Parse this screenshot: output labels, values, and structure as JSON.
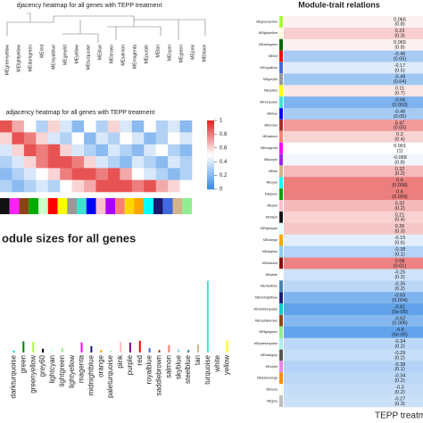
{
  "dendrogram": {
    "title": "djacency heatmap for all genes with TEPP treatment",
    "labels": [
      "MEgreenyellow",
      "MElightyellow",
      "MEdarkgreen",
      "MEred",
      "MEroyalblue",
      "MEgrey60",
      "MEyellow",
      "MEturquoise",
      "MEblue",
      "MEbrown",
      "MEsalmon",
      "MEmagenta",
      "MEpurple",
      "MEtan",
      "MEcyan",
      "MEgreen",
      "MEpink",
      "MEblack"
    ]
  },
  "heatmap": {
    "title": "adjacency heatmap for all genes with TEPP treatment",
    "colorbar_ticks": [
      1,
      0.8,
      0.6,
      0.4,
      0.2,
      0
    ],
    "matrix": [
      [
        0.9,
        0.7,
        0.5,
        0.3,
        0.6,
        0.4,
        0.2,
        0.5,
        0.3,
        0.6,
        0.4,
        0.2,
        0.5,
        0.3,
        0.4,
        0.2
      ],
      [
        0.6,
        0.9,
        0.8,
        0.6,
        0.4,
        0.3,
        0.5,
        0.2,
        0.4,
        0.3,
        0.5,
        0.4,
        0.2,
        0.3,
        0.5,
        0.4
      ],
      [
        0.4,
        0.6,
        0.9,
        0.8,
        0.9,
        0.6,
        0.4,
        0.3,
        0.2,
        0.4,
        0.3,
        0.2,
        0.4,
        0.5,
        0.3,
        0.2
      ],
      [
        0.3,
        0.4,
        0.6,
        0.8,
        0.9,
        0.9,
        0.8,
        0.6,
        0.4,
        0.3,
        0.2,
        0.4,
        0.3,
        0.2,
        0.4,
        0.3
      ],
      [
        0.2,
        0.3,
        0.4,
        0.5,
        0.6,
        0.8,
        0.9,
        0.9,
        0.8,
        0.9,
        0.7,
        0.5,
        0.4,
        0.3,
        0.2,
        0.3
      ],
      [
        0.3,
        0.2,
        0.3,
        0.4,
        0.3,
        0.5,
        0.6,
        0.7,
        0.9,
        0.9,
        0.9,
        0.8,
        0.9,
        0.7,
        0.6,
        0.5
      ]
    ],
    "module_colors": [
      "#111",
      "#f2f",
      "#8b4513",
      "#0a0",
      "#cfc",
      "#f00",
      "#ff0",
      "#999",
      "#40e0d0",
      "#00f",
      "#ffc0cb",
      "#a0f",
      "#fa8072",
      "#ffd700",
      "#ffa500",
      "#0ff",
      "#191970",
      "#4169e1",
      "#d2b48c",
      "#90ee90"
    ]
  },
  "module_sizes": {
    "title": "odule sizes for all genes",
    "ylim": [
      0,
      1500
    ],
    "categories": [
      "darkturquoise",
      "green",
      "greenyellow",
      "grey60",
      "lightcyan",
      "lightgreen",
      "lightyellow",
      "magenta",
      "midnightblue",
      "orange",
      "paleturquoise",
      "pink",
      "purple",
      "red",
      "royalblue",
      "saddlebrown",
      "salmon",
      "skyblue",
      "steelblue",
      "tan",
      "turquoise",
      "white",
      "yellow"
    ],
    "values": [
      30,
      180,
      170,
      60,
      80,
      70,
      60,
      160,
      100,
      40,
      40,
      170,
      160,
      190,
      70,
      40,
      120,
      50,
      40,
      130,
      1150,
      30,
      190
    ]
  },
  "module_trait": {
    "title": "Module-trait relations",
    "xlabel": "TEPP treatment",
    "rows": [
      {
        "label": "MEgreenyellow",
        "r": 0.065,
        "p": "(0.8)",
        "color": "#adff2f"
      },
      {
        "label": "MElightyellow",
        "r": 0.23,
        "p": "(0.3)",
        "color": "#ffffe0"
      },
      {
        "label": "MEdarkgreen",
        "r": 0.065,
        "p": "(0.8)",
        "color": "#006400"
      },
      {
        "label": "MEred",
        "r": -0.45,
        "p": "(0.05)",
        "color": "#ff0000"
      },
      {
        "label": "MEroyalblue",
        "r": -0.17,
        "p": "(0.5)",
        "color": "#4169e1"
      },
      {
        "label": "MEgrey60",
        "r": -0.49,
        "p": "(0.04)",
        "color": "#999999"
      },
      {
        "label": "MEyellow",
        "r": 0.11,
        "p": "(0.7)",
        "color": "#ffff00"
      },
      {
        "label": "MEturquoise",
        "r": -0.66,
        "p": "(0.003)",
        "color": "#40e0d0"
      },
      {
        "label": "MEblue",
        "r": -0.46,
        "p": "(0.05)",
        "color": "#0000ff"
      },
      {
        "label": "MEbrown",
        "r": 0.47,
        "p": "(0.05)",
        "color": "#a52a2a"
      },
      {
        "label": "MEsalmon",
        "r": 0.2,
        "p": "(0.4)",
        "color": "#fa8072"
      },
      {
        "label": "MEmagenta",
        "r": 0.001,
        "p": "(1)",
        "color": "#ff00ff"
      },
      {
        "label": "MEpurple",
        "r": -0.068,
        "p": "(0.8)",
        "color": "#a020f0"
      },
      {
        "label": "MEtan",
        "r": 0.32,
        "p": "(0.2)",
        "color": "#d2b48c"
      },
      {
        "label": "MEcyan",
        "r": 0.6,
        "p": "(0.008)",
        "color": "#00ffff"
      },
      {
        "label": "MEgreen",
        "r": 0.6,
        "p": "(0.009)",
        "color": "#00a000"
      },
      {
        "label": "MEpink",
        "r": 0.32,
        "p": "(0.2)",
        "color": "#ffc0cb"
      },
      {
        "label": "MEblack",
        "r": 0.21,
        "p": "(0.4)",
        "color": "#111111"
      },
      {
        "label": "MElightcyan",
        "r": 0.26,
        "p": "(0.3)",
        "color": "#e0ffff"
      },
      {
        "label": "MEorange",
        "r": -0.15,
        "p": "(0.6)",
        "color": "#ffa500"
      },
      {
        "label": "MEskyblue",
        "r": -0.38,
        "p": "(0.1)",
        "color": "#87ceeb"
      },
      {
        "label": "MEdarkred",
        "r": 0.58,
        "p": "(0.01)",
        "color": "#8b0000"
      },
      {
        "label": "MEwhite",
        "r": -0.25,
        "p": "(0.3)",
        "color": "#ffffff"
      },
      {
        "label": "MEsteelblue",
        "r": -0.35,
        "p": "(0.2)",
        "color": "#4682b4"
      },
      {
        "label": "MEmidnightblue",
        "r": -0.65,
        "p": "(0.004)",
        "color": "#191970"
      },
      {
        "label": "MEdarkturquoise",
        "r": -0.81,
        "p": "(5e-05)",
        "color": "#00ced1"
      },
      {
        "label": "MEsaddlebrown",
        "r": -0.62,
        "p": "(0.006)",
        "color": "#8b4513"
      },
      {
        "label": "MElightgreen",
        "r": -0.8,
        "p": "(6e-05)",
        "color": "#90ee90"
      },
      {
        "label": "MEpaleturquoise",
        "r": -0.34,
        "p": "(0.2)",
        "color": "#afeeee"
      },
      {
        "label": "MEdarkgrey",
        "r": -0.29,
        "p": "(0.2)",
        "color": "#555555"
      },
      {
        "label": "MEviolet",
        "r": -0.38,
        "p": "(0.1)",
        "color": "#ee82ee"
      },
      {
        "label": "MEdarkorange",
        "r": -0.34,
        "p": "(0.2)",
        "color": "#ff8c00"
      },
      {
        "label": "MEivory",
        "r": -0.3,
        "p": "(0.2)",
        "color": "#fffff0"
      },
      {
        "label": "MEgrey",
        "r": -0.27,
        "p": "(0.3)",
        "color": "#bebebe"
      }
    ]
  }
}
